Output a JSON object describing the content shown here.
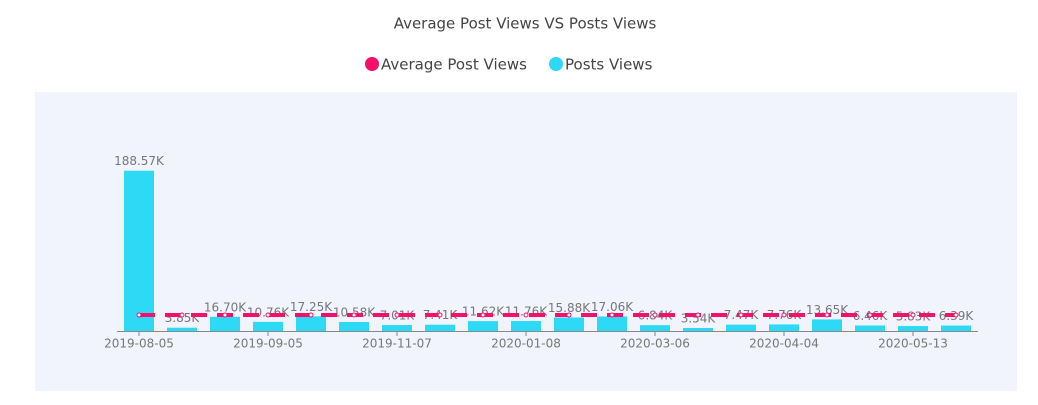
{
  "chart_data": {
    "type": "bar",
    "title": "Average Post Views VS Posts Views",
    "categories": [
      "2019-08-05",
      null,
      null,
      "2019-09-05",
      null,
      null,
      "2019-11-07",
      null,
      null,
      "2020-01-08",
      null,
      null,
      "2020-03-06",
      null,
      null,
      "2020-04-04",
      null,
      null,
      "2020-05-13",
      null
    ],
    "series": [
      {
        "name": "Average Post Views",
        "type": "line",
        "color": "#f5116b",
        "values": [
          18820,
          18820,
          18820,
          18820,
          18820,
          18820,
          18820,
          18820,
          18820,
          18820,
          18820,
          18820,
          18820,
          18820,
          18820,
          18820,
          18820,
          18820,
          18820,
          18820
        ]
      },
      {
        "name": "Posts Views",
        "type": "bar",
        "color": "#2ed9f6",
        "values": [
          188570,
          3850,
          16700,
          10760,
          17250,
          10580,
          7010,
          7410,
          11620,
          11760,
          15880,
          17060,
          6840,
          3540,
          7470,
          7760,
          13650,
          6460,
          5830,
          6390
        ],
        "value_labels": [
          "188.57K",
          "3.85K",
          "16.70K",
          "10.76K",
          "17.25K",
          "10.58K",
          "7.01K",
          "7.41K",
          "11.62K",
          "11.76K",
          "15.88K",
          "17.06K",
          "6.84K",
          "3.54K",
          "7.47K",
          "7.76K",
          "13.65K",
          "6.46K",
          "5.83K",
          "6.39K"
        ]
      }
    ],
    "ylim": [
      0,
      200000
    ],
    "legend": "top"
  }
}
